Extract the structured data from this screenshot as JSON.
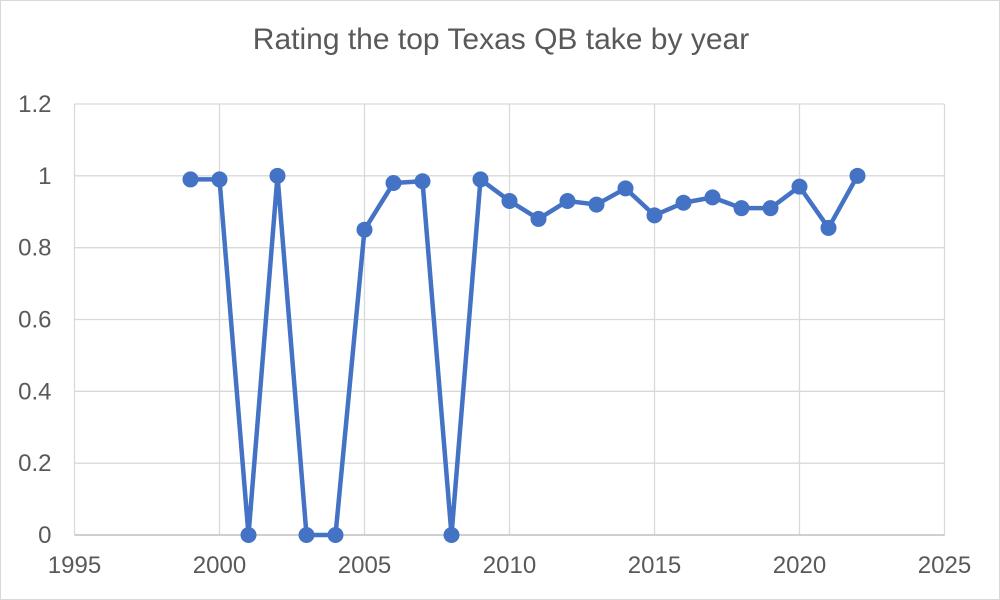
{
  "chart_data": {
    "type": "line",
    "title": "Rating the top Texas QB take by year",
    "x": [
      1999,
      2000,
      2001,
      2002,
      2003,
      2004,
      2005,
      2006,
      2007,
      2008,
      2009,
      2010,
      2011,
      2012,
      2013,
      2014,
      2015,
      2016,
      2017,
      2018,
      2019,
      2020,
      2021,
      2022
    ],
    "values": [
      0.99,
      0.99,
      0,
      1,
      0,
      0,
      0.85,
      0.98,
      0.985,
      0,
      0.99,
      0.93,
      0.88,
      0.93,
      0.92,
      0.965,
      0.89,
      0.925,
      0.94,
      0.91,
      0.91,
      0.97,
      0.855,
      1
    ],
    "xlabel": "",
    "ylabel": "",
    "xlim": [
      1995,
      2025
    ],
    "ylim": [
      0,
      1.2
    ],
    "xticks": [
      1995,
      2000,
      2005,
      2010,
      2015,
      2020,
      2025
    ],
    "yticks": [
      0,
      0.2,
      0.4,
      0.6,
      0.8,
      1,
      1.2
    ],
    "grid": true,
    "legend": "none",
    "series_color": "#4472C4",
    "grid_color": "#d9d9d9",
    "axis_line_color": "#bfbfbf",
    "text_color": "#595959",
    "title_color": "#595959"
  }
}
